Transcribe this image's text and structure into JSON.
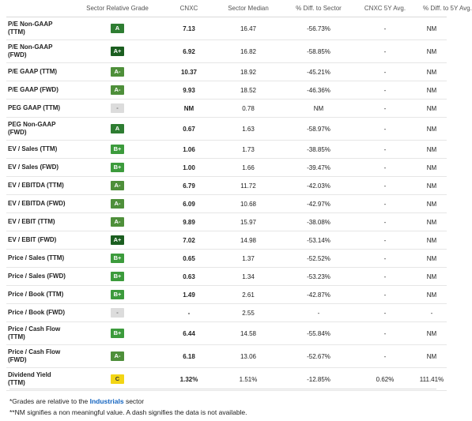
{
  "table": {
    "headers": [
      "",
      "Sector Relative Grade",
      "CNXC",
      "Sector Median",
      "% Diff. to Sector",
      "CNXC 5Y Avg.",
      "% Diff. to 5Y Avg."
    ],
    "rows": [
      {
        "metric": "P/E Non-GAAP (TTM)",
        "grade": "A",
        "cls": "g-a",
        "value": "7.13",
        "median": "16.47",
        "diff": "-56.73%",
        "avg": "-",
        "diff5y": "NM",
        "tall": true
      },
      {
        "metric": "P/E Non-GAAP (FWD)",
        "grade": "A+",
        "cls": "g-ap",
        "value": "6.92",
        "median": "16.82",
        "diff": "-58.85%",
        "avg": "-",
        "diff5y": "NM",
        "tall": true
      },
      {
        "metric": "P/E GAAP (TTM)",
        "grade": "A-",
        "cls": "g-am",
        "value": "10.37",
        "median": "18.92",
        "diff": "-45.21%",
        "avg": "-",
        "diff5y": "NM"
      },
      {
        "metric": "P/E GAAP (FWD)",
        "grade": "A-",
        "cls": "g-am",
        "value": "9.93",
        "median": "18.52",
        "diff": "-46.36%",
        "avg": "-",
        "diff5y": "NM"
      },
      {
        "metric": "PEG GAAP (TTM)",
        "grade": "-",
        "cls": "g-na",
        "value": "NM",
        "median": "0.78",
        "diff": "NM",
        "avg": "-",
        "diff5y": "NM"
      },
      {
        "metric": "PEG Non-GAAP (FWD)",
        "grade": "A",
        "cls": "g-a",
        "value": "0.67",
        "median": "1.63",
        "diff": "-58.97%",
        "avg": "-",
        "diff5y": "NM",
        "tall": true
      },
      {
        "metric": "EV / Sales (TTM)",
        "grade": "B+",
        "cls": "g-bp",
        "value": "1.06",
        "median": "1.73",
        "diff": "-38.85%",
        "avg": "-",
        "diff5y": "NM"
      },
      {
        "metric": "EV / Sales (FWD)",
        "grade": "B+",
        "cls": "g-bp",
        "value": "1.00",
        "median": "1.66",
        "diff": "-39.47%",
        "avg": "-",
        "diff5y": "NM"
      },
      {
        "metric": "EV / EBITDA (TTM)",
        "grade": "A-",
        "cls": "g-am",
        "value": "6.79",
        "median": "11.72",
        "diff": "-42.03%",
        "avg": "-",
        "diff5y": "NM"
      },
      {
        "metric": "EV / EBITDA (FWD)",
        "grade": "A-",
        "cls": "g-am",
        "value": "6.09",
        "median": "10.68",
        "diff": "-42.97%",
        "avg": "-",
        "diff5y": "NM"
      },
      {
        "metric": "EV / EBIT (TTM)",
        "grade": "A-",
        "cls": "g-am",
        "value": "9.89",
        "median": "15.97",
        "diff": "-38.08%",
        "avg": "-",
        "diff5y": "NM"
      },
      {
        "metric": "EV / EBIT (FWD)",
        "grade": "A+",
        "cls": "g-ap",
        "value": "7.02",
        "median": "14.98",
        "diff": "-53.14%",
        "avg": "-",
        "diff5y": "NM"
      },
      {
        "metric": "Price / Sales (TTM)",
        "grade": "B+",
        "cls": "g-bp",
        "value": "0.65",
        "median": "1.37",
        "diff": "-52.52%",
        "avg": "-",
        "diff5y": "NM"
      },
      {
        "metric": "Price / Sales (FWD)",
        "grade": "B+",
        "cls": "g-bp",
        "value": "0.63",
        "median": "1.34",
        "diff": "-53.23%",
        "avg": "-",
        "diff5y": "NM"
      },
      {
        "metric": "Price / Book (TTM)",
        "grade": "B+",
        "cls": "g-bp",
        "value": "1.49",
        "median": "2.61",
        "diff": "-42.87%",
        "avg": "-",
        "diff5y": "NM"
      },
      {
        "metric": "Price / Book (FWD)",
        "grade": "-",
        "cls": "g-na",
        "value": "-",
        "median": "2.55",
        "diff": "-",
        "avg": "-",
        "diff5y": "-"
      },
      {
        "metric": "Price / Cash Flow (TTM)",
        "grade": "B+",
        "cls": "g-bp",
        "value": "6.44",
        "median": "14.58",
        "diff": "-55.84%",
        "avg": "-",
        "diff5y": "NM",
        "tall": true
      },
      {
        "metric": "Price / Cash Flow (FWD)",
        "grade": "A-",
        "cls": "g-am",
        "value": "6.18",
        "median": "13.06",
        "diff": "-52.67%",
        "avg": "-",
        "diff5y": "NM",
        "tall": true
      },
      {
        "metric": "Dividend Yield (TTM)",
        "grade": "C",
        "cls": "g-c",
        "value": "1.32%",
        "median": "1.51%",
        "diff": "-12.85%",
        "avg": "0.62%",
        "diff5y": "111.41%",
        "tall": true
      }
    ]
  },
  "footer": {
    "note1_prefix": "*Grades are relative to the ",
    "note1_link": "Industrials",
    "note1_suffix": " sector",
    "note2": "**NM signifies a non meaningful value. A dash signifies the data is not available."
  }
}
